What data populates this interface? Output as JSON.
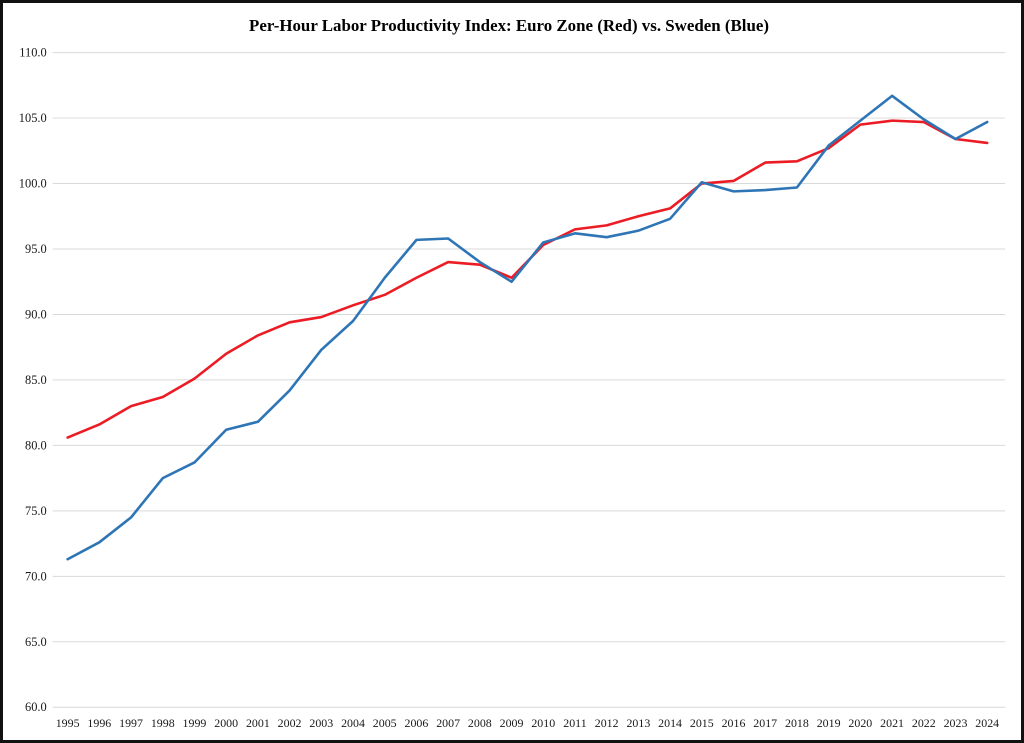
{
  "title": "Per-Hour Labor Productivity Index: Euro Zone (Red) vs. Sweden (Blue)",
  "chart_data": {
    "type": "line",
    "x": [
      1995,
      1996,
      1997,
      1998,
      1999,
      2000,
      2001,
      2002,
      2003,
      2004,
      2005,
      2006,
      2007,
      2008,
      2009,
      2010,
      2011,
      2012,
      2013,
      2014,
      2015,
      2016,
      2017,
      2018,
      2019,
      2020,
      2021,
      2022,
      2023,
      2024
    ],
    "series": [
      {
        "name": "Euro Zone",
        "color": "#ec1c25",
        "values": [
          80.6,
          81.6,
          83.0,
          83.7,
          85.1,
          87.0,
          88.4,
          89.4,
          89.8,
          90.7,
          91.5,
          92.8,
          94.0,
          93.8,
          92.8,
          95.3,
          96.5,
          96.8,
          97.5,
          98.1,
          100.0,
          100.2,
          101.6,
          101.7,
          102.7,
          104.5,
          104.8,
          104.7,
          103.4,
          103.1
        ]
      },
      {
        "name": "Sweden",
        "color": "#2e75b6",
        "values": [
          71.3,
          72.6,
          74.5,
          77.5,
          78.7,
          81.2,
          81.8,
          84.2,
          87.3,
          89.5,
          92.8,
          95.7,
          95.8,
          94.0,
          92.5,
          95.5,
          96.2,
          95.9,
          96.4,
          97.3,
          100.1,
          99.4,
          99.5,
          99.7,
          102.9,
          104.8,
          106.7,
          104.9,
          103.4,
          104.7
        ]
      }
    ],
    "title": "Per-Hour Labor Productivity Index: Euro Zone (Red) vs. Sweden (Blue)",
    "xlabel": "",
    "ylabel": "",
    "ylim": [
      60.0,
      110.0
    ],
    "ytick_step": 5.0,
    "y_tick_labels": [
      "60.0",
      "65.0",
      "70.0",
      "75.0",
      "80.0",
      "85.0",
      "90.0",
      "95.0",
      "100.0",
      "105.0",
      "110.0"
    ],
    "x_tick_labels": [
      "1995",
      "1996",
      "1997",
      "1998",
      "1999",
      "2000",
      "2001",
      "2002",
      "2003",
      "2004",
      "2005",
      "2006",
      "2007",
      "2008",
      "2009",
      "2010",
      "2011",
      "2012",
      "2013",
      "2014",
      "2015",
      "2016",
      "2017",
      "2018",
      "2019",
      "2020",
      "2021",
      "2022",
      "2023",
      "2024"
    ],
    "grid": "horizontal",
    "legend_position": "none (series identified in title)"
  }
}
